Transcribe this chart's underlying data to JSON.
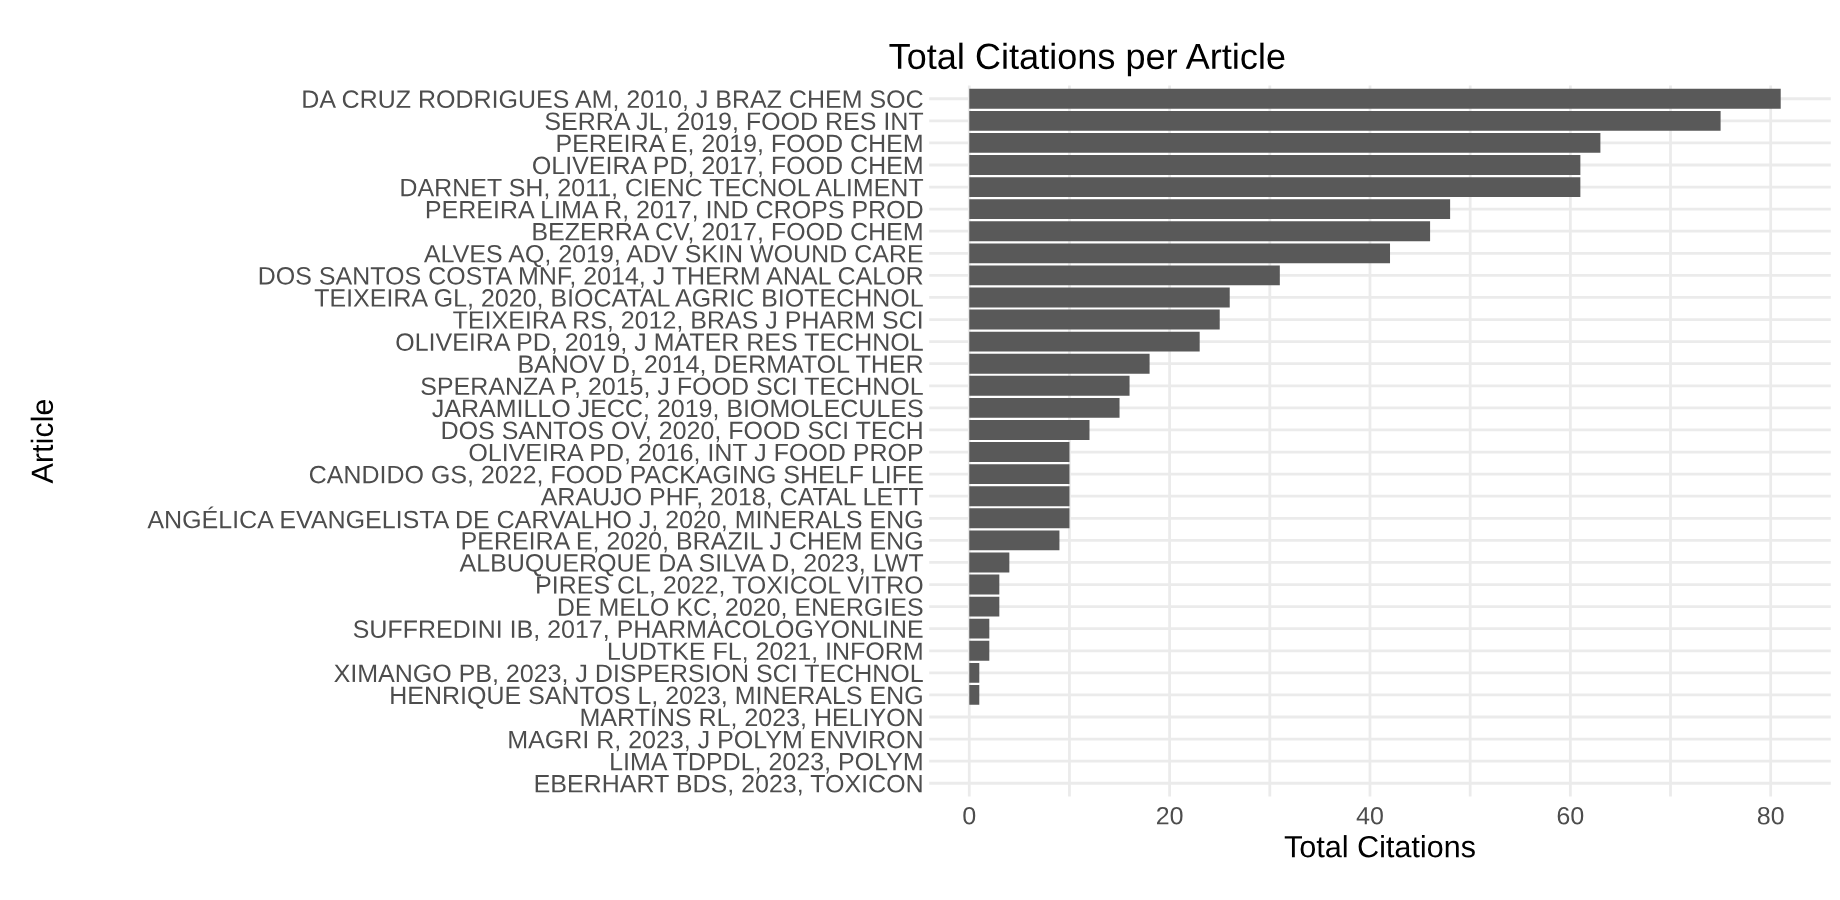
{
  "chart_data": {
    "type": "bar",
    "orientation": "horizontal",
    "title": "Total Citations per Article",
    "xlabel": "Total Citations",
    "ylabel": "Article",
    "categories": [
      "DA CRUZ RODRIGUES AM, 2010, J BRAZ CHEM SOC",
      "SERRA JL, 2019, FOOD RES INT",
      "PEREIRA E, 2019, FOOD CHEM",
      "OLIVEIRA PD, 2017, FOOD CHEM",
      "DARNET SH, 2011, CIENC TECNOL ALIMENT",
      "PEREIRA LIMA R, 2017, IND CROPS PROD",
      "BEZERRA CV, 2017, FOOD CHEM",
      "ALVES AQ, 2019, ADV SKIN WOUND CARE",
      "DOS SANTOS COSTA MNF, 2014, J THERM ANAL CALOR",
      "TEIXEIRA GL, 2020, BIOCATAL AGRIC BIOTECHNOL",
      "TEIXEIRA RS, 2012, BRAS J PHARM SCI",
      "OLIVEIRA PD, 2019, J MATER RES TECHNOL",
      "BANOV D, 2014, DERMATOL THER",
      "SPERANZA P, 2015, J FOOD SCI TECHNOL",
      "JARAMILLO JECC, 2019, BIOMOLECULES",
      "DOS SANTOS OV, 2020, FOOD SCI TECH",
      "OLIVEIRA PD, 2016, INT J FOOD PROP",
      "CANDIDO GS, 2022, FOOD PACKAGING SHELF LIFE",
      "ARAUJO PHF, 2018, CATAL LETT",
      "ANGÉLICA EVANGELISTA DE CARVALHO J, 2020, MINERALS ENG",
      "PEREIRA E, 2020, BRAZIL J CHEM ENG",
      "ALBUQUERQUE DA SILVA D, 2023, LWT",
      "PIRES CL, 2022, TOXICOL VITRO",
      "DE MELO KC, 2020, ENERGIES",
      "SUFFREDINI IB, 2017, PHARMACOLOGYONLINE",
      "LUDTKE FL, 2021, INFORM",
      "XIMANGO PB, 2023, J DISPERSION SCI TECHNOL",
      "HENRIQUE SANTOS L, 2023, MINERALS ENG",
      "MARTINS RL, 2023, HELIYON",
      "MAGRI R, 2023, J POLYM ENVIRON",
      "LIMA TDPDL, 2023, POLYM",
      "EBERHART BDS, 2023, TOXICON"
    ],
    "values": [
      81,
      75,
      63,
      61,
      61,
      48,
      46,
      42,
      31,
      26,
      25,
      23,
      18,
      16,
      15,
      12,
      10,
      10,
      10,
      10,
      9,
      4,
      3,
      3,
      2,
      2,
      1,
      1,
      0,
      0,
      0,
      0
    ],
    "color": "#595959",
    "xlim": [
      -4,
      86
    ],
    "xticks": [
      0,
      {
        "value": 10,
        "label": null
      },
      20,
      {
        "value": 30,
        "label": null
      },
      40,
      {
        "value": 50,
        "label": null
      },
      60,
      {
        "value": 70,
        "label": null
      },
      80
    ],
    "grid": true
  }
}
